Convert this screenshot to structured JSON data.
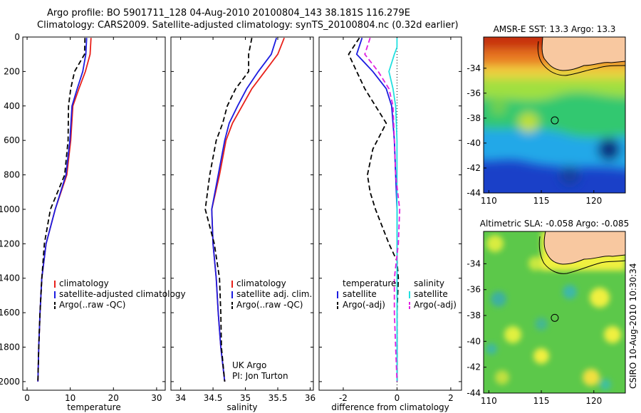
{
  "header": {
    "line1": "Argo profile: BO 5901711_128 04-Aug-2010 20100804_143 38.181S 116.279E",
    "line2": "Climatology: CARS2009. Satellite-adjusted climatology: synTS_20100804.nc (0.32d earlier)"
  },
  "colors": {
    "climatology": "#e8201a",
    "satellite": "#1c1ce0",
    "argo": "#000000",
    "salinity_satellite": "#22e0e0",
    "salinity_argo": "#e020e0",
    "land": "#f8c8a0"
  },
  "chart_data": [
    {
      "type": "line",
      "id": "temperature",
      "xlabel": "temperature",
      "ylabel": "",
      "xlim": [
        -1,
        32
      ],
      "ylim": [
        2050,
        0
      ],
      "xticks": [
        "0",
        "10",
        "20",
        "30"
      ],
      "yticks": [
        "0",
        "200",
        "400",
        "600",
        "800",
        "1000",
        "1200",
        "1400",
        "1600",
        "1800",
        "2000"
      ],
      "series": [
        {
          "name": "climatology",
          "style": "solid",
          "color": "climatology",
          "points": [
            [
              14.8,
              5
            ],
            [
              14.6,
              100
            ],
            [
              13.5,
              200
            ],
            [
              12,
              300
            ],
            [
              10.6,
              400
            ],
            [
              10.1,
              600
            ],
            [
              9.2,
              800
            ],
            [
              6.5,
              1000
            ],
            [
              4.4,
              1200
            ],
            [
              3.4,
              1400
            ],
            [
              3,
              1600
            ],
            [
              2.7,
              1800
            ],
            [
              2.5,
              2000
            ]
          ]
        },
        {
          "name": "satellite-adjusted climatology",
          "style": "solid",
          "color": "satellite",
          "points": [
            [
              13.8,
              5
            ],
            [
              13.6,
              100
            ],
            [
              12.9,
              200
            ],
            [
              11.6,
              300
            ],
            [
              10.4,
              400
            ],
            [
              9.9,
              600
            ],
            [
              9,
              800
            ],
            [
              6.5,
              1000
            ],
            [
              4.4,
              1200
            ],
            [
              3.4,
              1400
            ],
            [
              3,
              1600
            ],
            [
              2.7,
              1800
            ],
            [
              2.5,
              2000
            ]
          ]
        },
        {
          "name": "Argo(..raw -QC)",
          "style": "dashed",
          "color": "argo",
          "points": [
            [
              13.4,
              5
            ],
            [
              13.3,
              100
            ],
            [
              11,
              200
            ],
            [
              10.1,
              300
            ],
            [
              9.6,
              400
            ],
            [
              9.5,
              600
            ],
            [
              8.7,
              800
            ],
            [
              5.4,
              1000
            ],
            [
              4,
              1200
            ],
            [
              3.4,
              1400
            ],
            [
              3,
              1600
            ],
            [
              2.7,
              1800
            ],
            [
              2.5,
              2000
            ]
          ]
        }
      ],
      "legend": [
        "climatology",
        "satellite-adjusted climatology",
        "Argo(..raw -QC)"
      ],
      "legend_position": "lower-right"
    },
    {
      "type": "line",
      "id": "salinity",
      "xlabel": "salinity",
      "ylabel": "",
      "xlim": [
        33.85,
        36.05
      ],
      "ylim": [
        2050,
        0
      ],
      "xticks": [
        "34",
        "34.5",
        "35",
        "35.5",
        "36"
      ],
      "series": [
        {
          "name": "climatology",
          "style": "solid",
          "color": "climatology",
          "points": [
            [
              35.6,
              5
            ],
            [
              35.5,
              100
            ],
            [
              35.3,
              200
            ],
            [
              35.1,
              300
            ],
            [
              34.95,
              400
            ],
            [
              34.8,
              500
            ],
            [
              34.7,
              600
            ],
            [
              34.6,
              800
            ],
            [
              34.48,
              1000
            ],
            [
              34.5,
              1200
            ],
            [
              34.55,
              1400
            ],
            [
              34.58,
              1600
            ],
            [
              34.62,
              1800
            ],
            [
              34.68,
              2000
            ]
          ]
        },
        {
          "name": "satellite adj. clim.",
          "style": "solid",
          "color": "satellite",
          "points": [
            [
              35.48,
              5
            ],
            [
              35.4,
              100
            ],
            [
              35.2,
              200
            ],
            [
              35.02,
              300
            ],
            [
              34.88,
              400
            ],
            [
              34.75,
              500
            ],
            [
              34.68,
              600
            ],
            [
              34.58,
              800
            ],
            [
              34.48,
              1000
            ],
            [
              34.5,
              1200
            ],
            [
              34.55,
              1400
            ],
            [
              34.58,
              1600
            ],
            [
              34.62,
              1800
            ],
            [
              34.68,
              2000
            ]
          ]
        },
        {
          "name": "Argo(..raw -QC)",
          "style": "dashed",
          "color": "argo",
          "points": [
            [
              35.1,
              5
            ],
            [
              35.05,
              100
            ],
            [
              35.05,
              200
            ],
            [
              34.85,
              300
            ],
            [
              34.72,
              400
            ],
            [
              34.65,
              500
            ],
            [
              34.55,
              600
            ],
            [
              34.45,
              800
            ],
            [
              34.38,
              1000
            ],
            [
              34.52,
              1200
            ],
            [
              34.6,
              1400
            ],
            [
              34.62,
              1600
            ],
            [
              34.63,
              1800
            ],
            [
              34.68,
              2000
            ]
          ]
        }
      ],
      "legend": [
        "climatology",
        "satellite adj. clim.",
        "Argo(..raw -QC)"
      ],
      "legend_position": "lower-right",
      "annotation": [
        "UK Argo",
        "PI: Jon Turton"
      ]
    },
    {
      "type": "line",
      "id": "difference",
      "xlabel": "difference from climatology",
      "ylabel": "",
      "xlim": [
        -2.9,
        2.4
      ],
      "ylim": [
        2050,
        0
      ],
      "xticks": [
        "-2",
        "0",
        "2"
      ],
      "zero_line": "dotted",
      "series": [
        {
          "name": "temperature satellite",
          "style": "solid",
          "color": "satellite",
          "points": [
            [
              -1.3,
              5
            ],
            [
              -1.5,
              100
            ],
            [
              -0.9,
              200
            ],
            [
              -0.4,
              300
            ],
            [
              -0.2,
              400
            ],
            [
              -0.1,
              600
            ],
            [
              -0.05,
              800
            ],
            [
              0,
              1000
            ],
            [
              0,
              1200
            ],
            [
              0,
              1400
            ],
            [
              0,
              1600
            ],
            [
              0,
              1800
            ],
            [
              0,
              2000
            ]
          ]
        },
        {
          "name": "temperature Argo(-adj)",
          "style": "dashed",
          "color": "argo",
          "points": [
            [
              -1.4,
              5
            ],
            [
              -1.8,
              100
            ],
            [
              -1.5,
              200
            ],
            [
              -1.2,
              300
            ],
            [
              -0.8,
              400
            ],
            [
              -0.4,
              500
            ],
            [
              -0.9,
              650
            ],
            [
              -1.1,
              800
            ],
            [
              -1.0,
              900
            ],
            [
              -0.8,
              1000
            ],
            [
              -0.3,
              1200
            ],
            [
              0,
              1300
            ],
            [
              0.05,
              1400
            ],
            [
              0,
              1600
            ],
            [
              0,
              1800
            ],
            [
              0,
              2000
            ]
          ]
        },
        {
          "name": "salinity satellite",
          "style": "solid",
          "color": "salinity_satellite",
          "points": [
            [
              0,
              5
            ],
            [
              0,
              60
            ],
            [
              -0.1,
              100
            ],
            [
              -0.3,
              200
            ],
            [
              -0.15,
              300
            ],
            [
              -0.05,
              400
            ],
            [
              0,
              600
            ],
            [
              0,
              1000
            ],
            [
              0,
              1600
            ],
            [
              0,
              2000
            ]
          ]
        },
        {
          "name": "salinity Argo(-adj)",
          "style": "dashed",
          "color": "salinity_argo",
          "points": [
            [
              -1.0,
              5
            ],
            [
              -1.2,
              100
            ],
            [
              -0.7,
              200
            ],
            [
              -0.3,
              300
            ],
            [
              -0.15,
              400
            ],
            [
              -0.1,
              600
            ],
            [
              -0.05,
              800
            ],
            [
              0.1,
              1000
            ],
            [
              0.05,
              1200
            ],
            [
              -0.1,
              1400
            ],
            [
              -0.1,
              1600
            ],
            [
              -0.05,
              1800
            ],
            [
              0,
              2000
            ]
          ]
        }
      ],
      "legend_temperature": {
        "title": "temperature",
        "items": [
          "satellite",
          "Argo(-adj)"
        ]
      },
      "legend_salinity": {
        "title": "salinity",
        "items": [
          "satellite",
          "Argo(-adj)"
        ]
      }
    },
    {
      "type": "heatmap",
      "id": "sst-map",
      "title": "AMSR-E SST: 13.3 Argo: 13.3",
      "xlim": [
        109.5,
        123
      ],
      "ylim": [
        -44,
        -31.5
      ],
      "xticks": [
        "110",
        "115",
        "120"
      ],
      "yticks": [
        "-34",
        "-36",
        "-38",
        "-40",
        "-42",
        "-44"
      ],
      "marker": {
        "lon": 116.279,
        "lat": -38.181
      }
    },
    {
      "type": "heatmap",
      "id": "sla-map",
      "title": "Altimetric SLA: -0.058 Argo: -0.085",
      "xlim": [
        109.5,
        123
      ],
      "ylim": [
        -44,
        -31.5
      ],
      "xticks": [
        "110",
        "115",
        "120"
      ],
      "yticks": [
        "-34",
        "-36",
        "-38",
        "-40",
        "-42",
        "-44"
      ],
      "marker": {
        "lon": 116.279,
        "lat": -38.181
      }
    }
  ],
  "credit": "CSIRO 10-Aug-2010 10:30:34"
}
